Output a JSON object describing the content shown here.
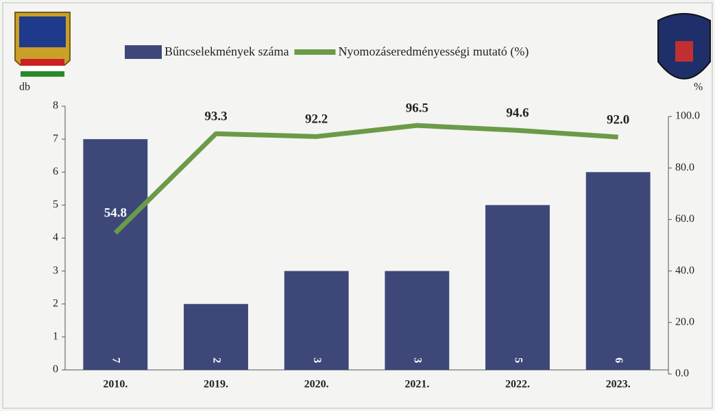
{
  "chart_data": {
    "type": "bar",
    "categories": [
      "2010.",
      "2019.",
      "2020.",
      "2021.",
      "2022.",
      "2023."
    ],
    "series": [
      {
        "name": "Bűncselekmények száma",
        "type": "bar",
        "color": "#3d4878",
        "values": [
          7,
          2,
          3,
          3,
          5,
          6
        ]
      },
      {
        "name": "Nyomozáseredményességi mutató (%)",
        "type": "line",
        "axis": "y2",
        "color": "#6b9a48",
        "values": [
          54.8,
          93.3,
          92.2,
          96.5,
          94.6,
          92.0
        ],
        "value_labels": [
          "54.8",
          "93.3",
          "92.2",
          "96.5",
          "94.6",
          "92.0"
        ]
      }
    ],
    "ylabel": "db",
    "y2label": "%",
    "ylim": [
      0,
      8
    ],
    "yticks": [
      0,
      1,
      2,
      3,
      4,
      5,
      6,
      7,
      8
    ],
    "y2lim": [
      0,
      100
    ],
    "y2ticks": [
      {
        "value": 0,
        "label": "0.0"
      },
      {
        "value": 20,
        "label": "20.0"
      },
      {
        "value": 40,
        "label": "40.0"
      },
      {
        "value": 60,
        "label": "60.0"
      },
      {
        "value": 80,
        "label": "80.0"
      },
      {
        "value": 100,
        "label": "100.0"
      }
    ],
    "legend": "top"
  }
}
